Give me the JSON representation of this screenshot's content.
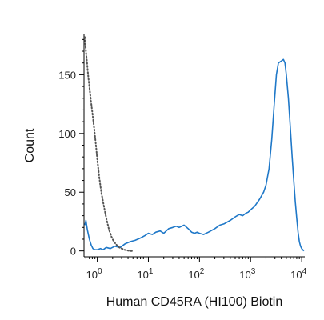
{
  "chart_data": {
    "type": "line",
    "title": "",
    "xlabel": "Human CD45RA (HI100) Biotin",
    "ylabel": "Count",
    "x_scale": "log",
    "xlim": [
      0.55,
      11500
    ],
    "ylim": [
      -5,
      185
    ],
    "x_ticks": [
      {
        "value": 1,
        "base": "10",
        "exp": "0"
      },
      {
        "value": 10,
        "base": "10",
        "exp": "1"
      },
      {
        "value": 100,
        "base": "10",
        "exp": "2"
      },
      {
        "value": 1000,
        "base": "10",
        "exp": "3"
      },
      {
        "value": 10000,
        "base": "10",
        "exp": "4"
      }
    ],
    "y_ticks": [
      0,
      50,
      100,
      150
    ],
    "grid": false,
    "legend": "none",
    "series": [
      {
        "style": "solid",
        "color": "#1f78c8",
        "x": [
          0.57,
          0.6,
          0.64,
          0.7,
          0.76,
          0.82,
          0.9,
          1.0,
          1.15,
          1.3,
          1.5,
          1.8,
          2.2,
          2.8,
          3.5,
          4.5,
          5.5,
          7,
          8.5,
          10,
          12,
          14,
          17,
          20,
          25,
          30,
          35,
          40,
          50,
          60,
          70,
          80,
          90,
          100,
          120,
          150,
          200,
          250,
          300,
          400,
          500,
          600,
          700,
          800,
          900,
          1000,
          1200,
          1500,
          1800,
          2000,
          2300,
          2600,
          2900,
          3200,
          3500,
          3800,
          4100,
          4400,
          4700,
          5000,
          5500,
          6000,
          6500,
          7000,
          7500,
          8000,
          8500,
          9000,
          9500,
          10000,
          10500,
          11000
        ],
        "y": [
          22,
          26,
          18,
          10,
          5,
          2,
          1,
          1,
          2,
          1,
          3,
          2,
          4,
          3,
          6,
          8,
          9,
          11,
          13,
          15,
          14,
          16,
          17,
          15,
          19,
          20,
          21,
          20,
          22,
          19,
          16,
          15,
          16,
          15,
          14,
          16,
          19,
          22,
          23,
          26,
          29,
          31,
          30,
          32,
          33,
          35,
          38,
          44,
          50,
          56,
          70,
          95,
          125,
          150,
          160,
          161,
          162,
          163,
          160,
          150,
          130,
          105,
          80,
          60,
          42,
          28,
          16,
          8,
          4,
          2,
          1,
          0
        ]
      },
      {
        "style": "dotted",
        "color": "#555555",
        "x": [
          0.57,
          0.6,
          0.63,
          0.66,
          0.7,
          0.75,
          0.8,
          0.85,
          0.9,
          0.95,
          1.0,
          1.1,
          1.2,
          1.35,
          1.5,
          1.7,
          1.9,
          2.1,
          2.4,
          2.7,
          3.0,
          3.4,
          3.8,
          4.3,
          5.0
        ],
        "y": [
          182,
          170,
          160,
          150,
          140,
          128,
          118,
          108,
          98,
          88,
          78,
          62,
          50,
          38,
          28,
          18,
          12,
          8,
          5,
          3,
          2,
          1,
          0.5,
          0,
          0
        ]
      }
    ]
  }
}
